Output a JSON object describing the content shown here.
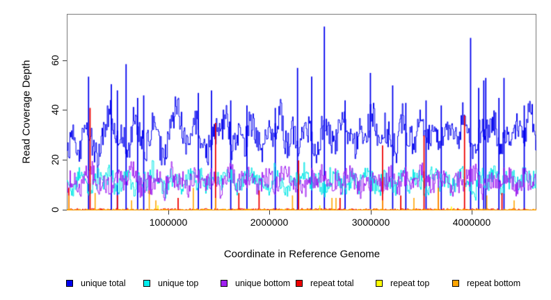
{
  "axes": {
    "x_title": "Coordinate in Reference Genome",
    "y_title": "Read Coverage Depth",
    "x_ticks": [
      {
        "label": "1000000",
        "value": 1000000
      },
      {
        "label": "2000000",
        "value": 2000000
      },
      {
        "label": "3000000",
        "value": 3000000
      },
      {
        "label": "4000000",
        "value": 4000000
      }
    ],
    "y_ticks": [
      {
        "label": "0",
        "value": 0
      },
      {
        "label": "20",
        "value": 20
      },
      {
        "label": "40",
        "value": 40
      },
      {
        "label": "60",
        "value": 60
      }
    ]
  },
  "legend": {
    "items": [
      {
        "label": "unique total",
        "color": "#0000EE"
      },
      {
        "label": "unique top",
        "color": "#00EEEE"
      },
      {
        "label": "unique bottom",
        "color": "#A020F0"
      },
      {
        "label": "repeat total",
        "color": "#EE0000"
      },
      {
        "label": "repeat top",
        "color": "#FFFF00"
      },
      {
        "label": "repeat bottom",
        "color": "#FFA500"
      }
    ]
  },
  "chart_data": {
    "type": "line",
    "step": true,
    "title": "",
    "xlabel": "Coordinate in Reference Genome",
    "ylabel": "Read Coverage Depth",
    "xlim": [
      0,
      4640000
    ],
    "ylim": [
      0,
      78.6
    ],
    "x_tick_values": [
      1000000,
      2000000,
      3000000,
      4000000
    ],
    "y_tick_values": [
      0,
      20,
      40,
      60
    ],
    "grid": false,
    "legend_position": "bottom",
    "seed": 1234567,
    "series": [
      {
        "name": "unique total",
        "color": "#0000EE",
        "jitter": 6,
        "sub": 8,
        "width": 1,
        "spike_width": 1.8,
        "base": [
          24,
          30,
          22,
          35,
          28,
          19,
          33,
          41,
          26,
          31,
          22,
          38,
          29,
          24,
          35,
          27,
          20,
          32,
          44,
          30,
          25,
          36,
          28,
          21,
          34,
          29,
          39,
          26,
          31,
          23,
          37,
          30,
          25,
          33,
          28,
          40,
          24,
          32,
          27,
          36,
          29,
          22,
          35,
          30,
          26,
          38,
          31,
          24,
          33,
          28,
          41,
          27,
          34,
          29,
          23,
          37,
          30,
          26,
          39,
          28,
          33,
          25,
          36,
          31,
          27,
          40,
          29,
          24,
          34,
          30,
          37,
          26,
          32,
          28,
          35,
          30,
          41,
          27
        ],
        "spikes": [
          {
            "x": 215000,
            "v": 53.5
          },
          {
            "x": 440000,
            "v": 50.5
          },
          {
            "x": 500000,
            "v": 48
          },
          {
            "x": 586000,
            "v": 58.5
          },
          {
            "x": 700000,
            "v": 45
          },
          {
            "x": 760000,
            "v": 46
          },
          {
            "x": 1300000,
            "v": 47
          },
          {
            "x": 1430000,
            "v": 48
          },
          {
            "x": 1620000,
            "v": 44
          },
          {
            "x": 1780000,
            "v": 42
          },
          {
            "x": 2060000,
            "v": 41
          },
          {
            "x": 2280000,
            "v": 57
          },
          {
            "x": 2420000,
            "v": 53.5
          },
          {
            "x": 2545000,
            "v": 73.5
          },
          {
            "x": 2750000,
            "v": 44
          },
          {
            "x": 3000000,
            "v": 55
          },
          {
            "x": 3220000,
            "v": 50
          },
          {
            "x": 3350000,
            "v": 43
          },
          {
            "x": 3550000,
            "v": 44
          },
          {
            "x": 3700000,
            "v": 42
          },
          {
            "x": 3990000,
            "v": 69
          },
          {
            "x": 4070000,
            "v": 49
          },
          {
            "x": 4120000,
            "v": 52
          },
          {
            "x": 4140000,
            "v": 53
          },
          {
            "x": 4270000,
            "v": 45
          },
          {
            "x": 4320000,
            "v": 53
          },
          {
            "x": 4520000,
            "v": 42
          }
        ]
      },
      {
        "name": "unique top",
        "color": "#00E6E6",
        "jitter": 4,
        "sub": 8,
        "width": 1,
        "base": [
          12,
          9,
          14,
          11,
          7,
          13,
          10,
          16,
          8,
          12,
          15,
          9,
          13,
          11,
          17,
          10,
          8,
          14,
          12,
          9,
          15,
          11,
          13,
          8,
          16,
          10,
          12,
          14,
          9,
          11,
          17,
          10,
          13,
          8,
          15,
          12,
          9,
          14,
          11,
          16,
          10,
          12,
          8,
          13,
          15,
          9,
          11,
          14,
          10,
          16,
          12,
          8,
          13,
          11,
          9,
          15,
          10,
          14,
          12,
          8,
          16,
          11,
          13,
          9,
          12,
          15,
          10,
          8,
          14,
          11,
          16,
          9,
          12,
          13,
          10,
          15,
          11,
          13
        ],
        "spikes": []
      },
      {
        "name": "unique bottom",
        "color": "#A020F0",
        "jitter": 4.5,
        "sub": 8,
        "width": 1,
        "base": [
          11,
          14,
          9,
          13,
          16,
          10,
          12,
          8,
          15,
          11,
          13,
          17,
          9,
          12,
          10,
          14,
          8,
          16,
          11,
          13,
          9,
          15,
          12,
          10,
          14,
          8,
          13,
          16,
          10,
          12,
          15,
          9,
          11,
          14,
          10,
          13,
          16,
          9,
          12,
          8,
          14,
          11,
          15,
          10,
          13,
          9,
          16,
          12,
          8,
          14,
          11,
          13,
          10,
          15,
          9,
          12,
          14,
          8,
          16,
          11,
          10,
          13,
          15,
          9,
          12,
          10,
          14,
          16,
          8,
          11,
          13,
          10,
          15,
          12,
          9,
          14,
          11,
          12
        ],
        "spikes": []
      },
      {
        "name": "repeat total",
        "color": "#EE0000",
        "jitter": 0.8,
        "sub": 600,
        "width": 1,
        "spike_width": 1.8,
        "base": [
          0,
          0
        ],
        "spikes": [
          {
            "x": 20000,
            "v": 9
          },
          {
            "x": 230000,
            "v": 41
          },
          {
            "x": 500000,
            "v": 6
          },
          {
            "x": 1100000,
            "v": 5
          },
          {
            "x": 1470000,
            "v": 35
          },
          {
            "x": 1700000,
            "v": 7
          },
          {
            "x": 1900000,
            "v": 8
          },
          {
            "x": 2290000,
            "v": 20
          },
          {
            "x": 2700000,
            "v": 5
          },
          {
            "x": 3120000,
            "v": 26
          },
          {
            "x": 3300000,
            "v": 6
          },
          {
            "x": 3530000,
            "v": 30
          },
          {
            "x": 3670000,
            "v": 9
          },
          {
            "x": 3930000,
            "v": 38
          },
          {
            "x": 4300000,
            "v": 7
          }
        ]
      },
      {
        "name": "repeat top",
        "color": "#FFFF00",
        "jitter": 0,
        "sub": 2,
        "width": 1,
        "base": [
          0,
          0
        ],
        "spikes": [
          {
            "x": 900000,
            "v": 2
          },
          {
            "x": 2500000,
            "v": 2
          },
          {
            "x": 3800000,
            "v": 1.5
          }
        ]
      },
      {
        "name": "repeat bottom",
        "color": "#FFA500",
        "jitter": 0.5,
        "sub": 600,
        "width": 1.2,
        "spike_width": 1.6,
        "base": [
          0,
          0
        ],
        "spikes": [
          {
            "x": 20000,
            "v": 6
          },
          {
            "x": 280000,
            "v": 7
          },
          {
            "x": 640000,
            "v": 4
          },
          {
            "x": 815000,
            "v": 8
          },
          {
            "x": 880000,
            "v": 4
          },
          {
            "x": 1250000,
            "v": 9
          },
          {
            "x": 1470000,
            "v": 5
          },
          {
            "x": 2230000,
            "v": 6
          },
          {
            "x": 2620000,
            "v": 5
          },
          {
            "x": 2660000,
            "v": 5
          },
          {
            "x": 3120000,
            "v": 4
          },
          {
            "x": 3430000,
            "v": 5
          },
          {
            "x": 3670000,
            "v": 9
          },
          {
            "x": 4150000,
            "v": 6
          },
          {
            "x": 4420000,
            "v": 4
          }
        ]
      }
    ]
  }
}
